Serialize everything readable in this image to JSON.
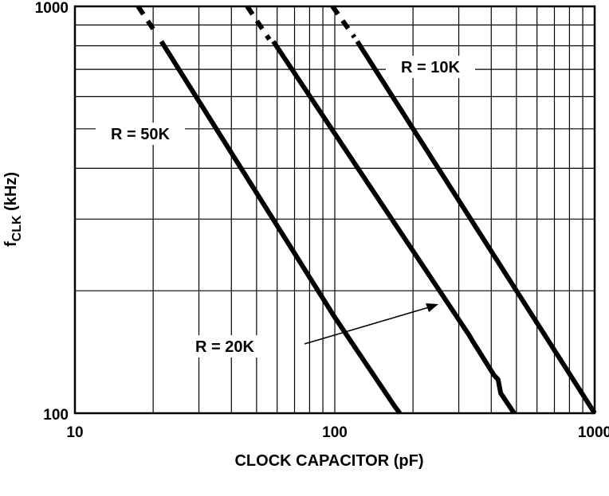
{
  "chart_data": {
    "type": "line",
    "xlabel": "CLOCK CAPACITOR (pF)",
    "ylabel_main": "f",
    "ylabel_sub": "CLK",
    "ylabel_unit": " (kHz)",
    "x_scale": "log",
    "y_scale": "log",
    "xlim": [
      10,
      1000
    ],
    "ylim": [
      100,
      1000
    ],
    "x_ticks": [
      {
        "value": 10,
        "label": "10"
      },
      {
        "value": 100,
        "label": "100"
      },
      {
        "value": 1000,
        "label": "1000"
      }
    ],
    "y_ticks": [
      {
        "value": 100,
        "label": "100"
      },
      {
        "value": 1000,
        "label": "1000"
      }
    ],
    "grid": true,
    "series": [
      {
        "name": "R = 50K",
        "dashed_points": [
          [
            17.5,
            1000
          ],
          [
            20.5,
            860
          ]
        ],
        "points": [
          [
            21.5,
            820
          ],
          [
            100,
            172
          ],
          [
            170,
            104
          ],
          [
            178,
            100
          ]
        ]
      },
      {
        "name": "R = 20K",
        "dashed_points": [
          [
            46,
            1000
          ],
          [
            56,
            830
          ]
        ],
        "points": [
          [
            58,
            820
          ],
          [
            330,
            155
          ],
          [
            340,
            150
          ],
          [
            410,
            124
          ],
          [
            425,
            121
          ],
          [
            435,
            112
          ],
          [
            490,
            100
          ]
        ]
      },
      {
        "name": "R = 10K",
        "dashed_points": [
          [
            98,
            1000
          ],
          [
            119,
            840
          ]
        ],
        "points": [
          [
            122,
            820
          ],
          [
            1000,
            100
          ]
        ]
      }
    ],
    "annotations": [
      {
        "text": "R = 10K"
      },
      {
        "text": "R = 50K"
      },
      {
        "text": "R = 20K"
      }
    ]
  }
}
